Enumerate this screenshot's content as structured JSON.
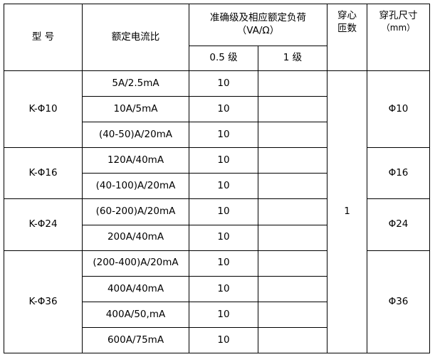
{
  "header": {
    "model": "型 号",
    "ratio": "额定电流比",
    "accuracy_title": "准确级及相应额定负荷",
    "accuracy_unit": "（VA/Ω）",
    "class_05": "0.5 级",
    "class_1": "1 级",
    "turns": "穿心匝数",
    "hole_title": "穿孔尺寸",
    "hole_unit": "（mm）"
  },
  "turns_value": "1",
  "groups": [
    {
      "model": "K-Φ10",
      "hole": "Φ10",
      "rows": [
        {
          "ratio": "5A/2.5mA",
          "c05": "10",
          "c1": ""
        },
        {
          "ratio": "10A/5mA",
          "c05": "10",
          "c1": ""
        },
        {
          "ratio": "(40-50)A/20mA",
          "c05": "10",
          "c1": ""
        }
      ]
    },
    {
      "model": "K-Φ16",
      "hole": "Φ16",
      "rows": [
        {
          "ratio": "120A/40mA",
          "c05": "10",
          "c1": ""
        },
        {
          "ratio": "(40-100)A/20mA",
          "c05": "10",
          "c1": ""
        }
      ]
    },
    {
      "model": "K-Φ24",
      "hole": "Φ24",
      "rows": [
        {
          "ratio": "(60-200)A/20mA",
          "c05": "10",
          "c1": ""
        },
        {
          "ratio": "200A/40mA",
          "c05": "10",
          "c1": ""
        }
      ]
    },
    {
      "model": "K-Φ36",
      "hole": "Φ36",
      "rows": [
        {
          "ratio": "(200-400)A/20mA",
          "c05": "10",
          "c1": ""
        },
        {
          "ratio": "400A/40mA",
          "c05": "10",
          "c1": ""
        },
        {
          "ratio": "400A/50,mA",
          "c05": "10",
          "c1": ""
        },
        {
          "ratio": "600A/75mA",
          "c05": "10",
          "c1": ""
        }
      ]
    }
  ]
}
